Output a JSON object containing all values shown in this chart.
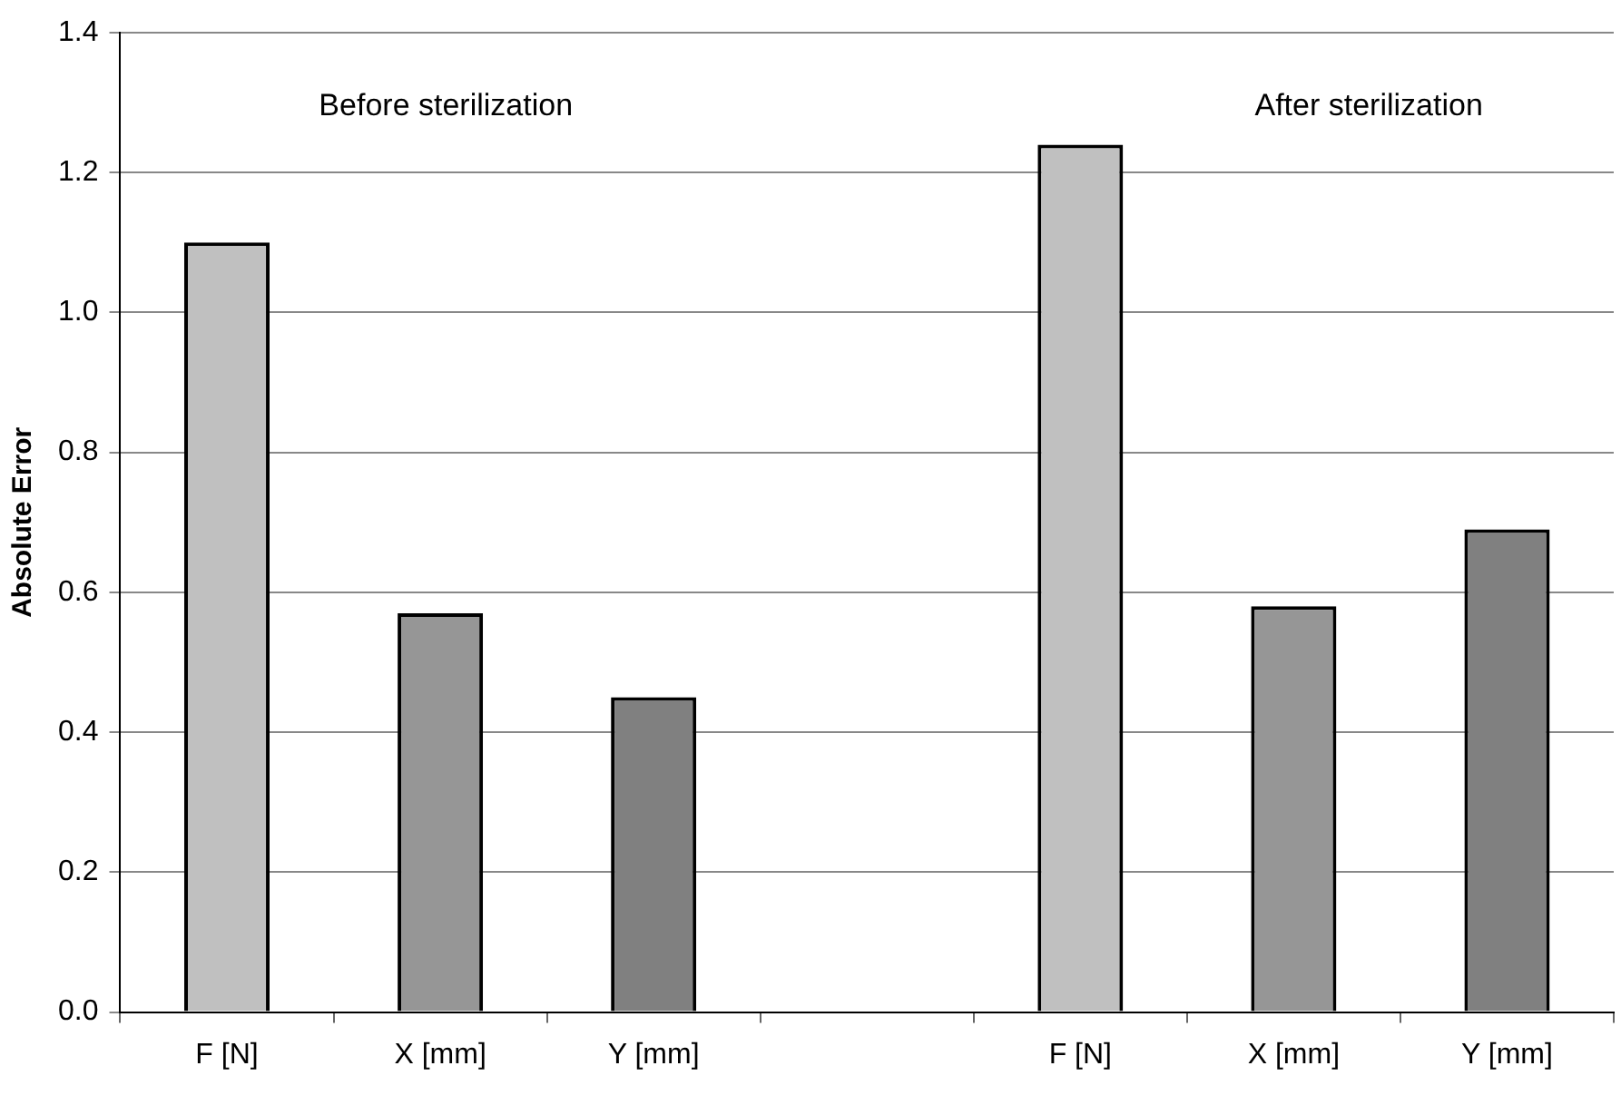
{
  "chart_data": {
    "type": "bar",
    "ylabel": "Absolute Error",
    "categories": [
      "F [N]",
      "X [mm]",
      "Y [mm]",
      null,
      "F [N]",
      "X [mm]",
      "Y [mm]"
    ],
    "values": [
      1.1,
      0.57,
      0.45,
      null,
      1.24,
      0.58,
      0.69
    ],
    "colors": [
      "#c0c0c0",
      "#969696",
      "#808080",
      "#c0c0c0",
      "#c0c0c0",
      "#969696",
      "#808080"
    ],
    "ylim": [
      0,
      1.4
    ],
    "yticks": [
      {
        "value": 0,
        "label": "0.0"
      },
      {
        "value": 0.2,
        "label": "0.2"
      },
      {
        "value": 0.4,
        "label": "0.4"
      },
      {
        "value": 0.6,
        "label": "0.6"
      },
      {
        "value": 0.8,
        "label": "0.8"
      },
      {
        "value": 1.0,
        "label": "1.0"
      },
      {
        "value": 1.2,
        "label": "1.2"
      },
      {
        "value": 1.4,
        "label": "1.4"
      }
    ],
    "grid": "y",
    "legend": false,
    "annotations": [
      "Before sterilization",
      "After sterilization"
    ]
  }
}
